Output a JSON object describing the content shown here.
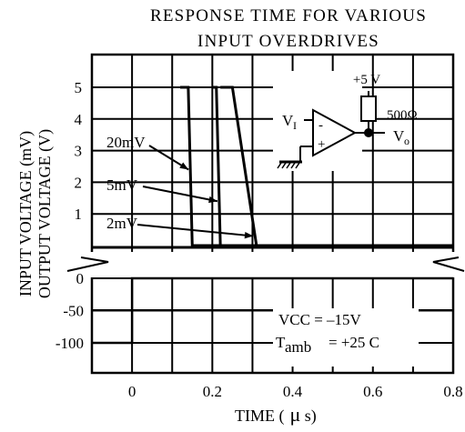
{
  "chart_data": {
    "type": "line",
    "title_line1": "RESPONSE TIME FOR VARIOUS",
    "title_line2": "INPUT OVERDRIVES",
    "xlabel_text": "TIME (",
    "xlabel_mu": "μ",
    "xlabel_unit": " s)",
    "ylabel_input": "INPUT VOLTAGE (mV)",
    "ylabel_output": "OUTPUT VOLTAGE (V)",
    "x_ticks": [
      {
        "value": 0,
        "label": "0"
      },
      {
        "value": 0.2,
        "label": "0.2"
      },
      {
        "value": 0.4,
        "label": "0.4"
      },
      {
        "value": 0.6,
        "label": "0.6"
      },
      {
        "value": 0.8,
        "label": "0.8"
      }
    ],
    "xlim": [
      -0.1,
      0.8
    ],
    "upper_panel": {
      "quantity": "output voltage",
      "unit": "V",
      "ylim": [
        0,
        5
      ],
      "y_ticks": [
        {
          "value": 1,
          "label": "1"
        },
        {
          "value": 2,
          "label": "2"
        },
        {
          "value": 3,
          "label": "3"
        },
        {
          "value": 4,
          "label": "4"
        },
        {
          "value": 5,
          "label": "5"
        }
      ]
    },
    "lower_panel": {
      "quantity": "input voltage",
      "unit": "mV",
      "ylim": [
        -100,
        0
      ],
      "y_ticks": [
        {
          "value": 0,
          "label": "0"
        },
        {
          "value": -50,
          "label": "-50"
        },
        {
          "value": -100,
          "label": "-100"
        }
      ]
    },
    "input_step": {
      "x": [
        -0.1,
        0.0,
        0.0,
        0.8
      ],
      "y_mV": [
        -100,
        -100,
        0,
        0
      ]
    },
    "series": [
      {
        "name": "20mV",
        "x": [
          0.12,
          0.14,
          0.15,
          0.8
        ],
        "y": [
          5,
          5,
          0,
          0
        ]
      },
      {
        "name": "5mV",
        "x": [
          0.2,
          0.21,
          0.22,
          0.8
        ],
        "y": [
          5,
          5,
          0,
          0
        ]
      },
      {
        "name": "2mV",
        "x": [
          0.22,
          0.25,
          0.31,
          0.8
        ],
        "y": [
          5,
          5,
          0,
          0
        ]
      }
    ],
    "series_labels": [
      {
        "text": "20mV",
        "series": "20mV",
        "arrow_to_y": 2.4
      },
      {
        "text": "5mV",
        "series": "5mV",
        "arrow_to_y": 1.4
      },
      {
        "text": "2mV",
        "series": "2mV",
        "arrow_to_y": 0.3
      }
    ],
    "annotations": {
      "vcc": "VCC = –15V",
      "tamb_T": "T",
      "tamb_sub": "amb",
      "tamb_value": "= +25 C"
    },
    "circuit": {
      "supply": "+5 V",
      "resistor": "500Ω",
      "input_V": "V",
      "input_sub": "I",
      "output_V": "V",
      "output_sub": "o",
      "minus": "-",
      "plus": "+"
    },
    "grid": true
  }
}
